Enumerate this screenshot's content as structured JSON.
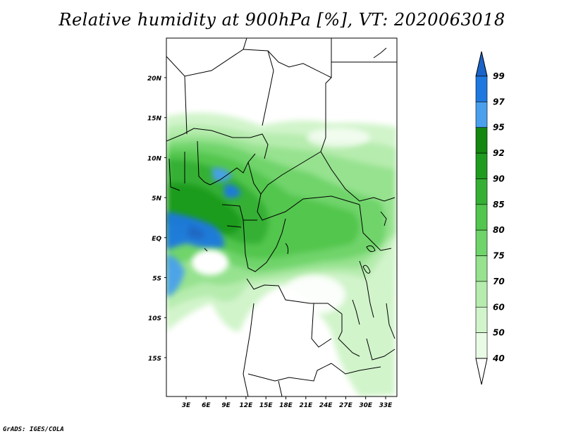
{
  "title": "Relative humidity at 900hPa [%], VT: 2020063018",
  "credit": "GrADS: IGES/COLA",
  "map": {
    "lat_labels": [
      "20N",
      "15N",
      "10N",
      "5N",
      "EQ",
      "5S",
      "10S",
      "15S"
    ],
    "lon_labels": [
      "3E",
      "6E",
      "9E",
      "12E",
      "15E",
      "18E",
      "21E",
      "24E",
      "27E",
      "30E",
      "33E"
    ]
  },
  "colorbar": {
    "labels": [
      "99",
      "97",
      "95",
      "92",
      "90",
      "85",
      "80",
      "75",
      "70",
      "60",
      "50",
      "40"
    ],
    "colors": [
      "#1a63c9",
      "#1f78e0",
      "#4aa0ec",
      "#13870f",
      "#1f9c1f",
      "#35b034",
      "#52c64e",
      "#6fd46a",
      "#96e28f",
      "#b6ecae",
      "#d1f4cb",
      "#e9fbe5"
    ]
  }
}
